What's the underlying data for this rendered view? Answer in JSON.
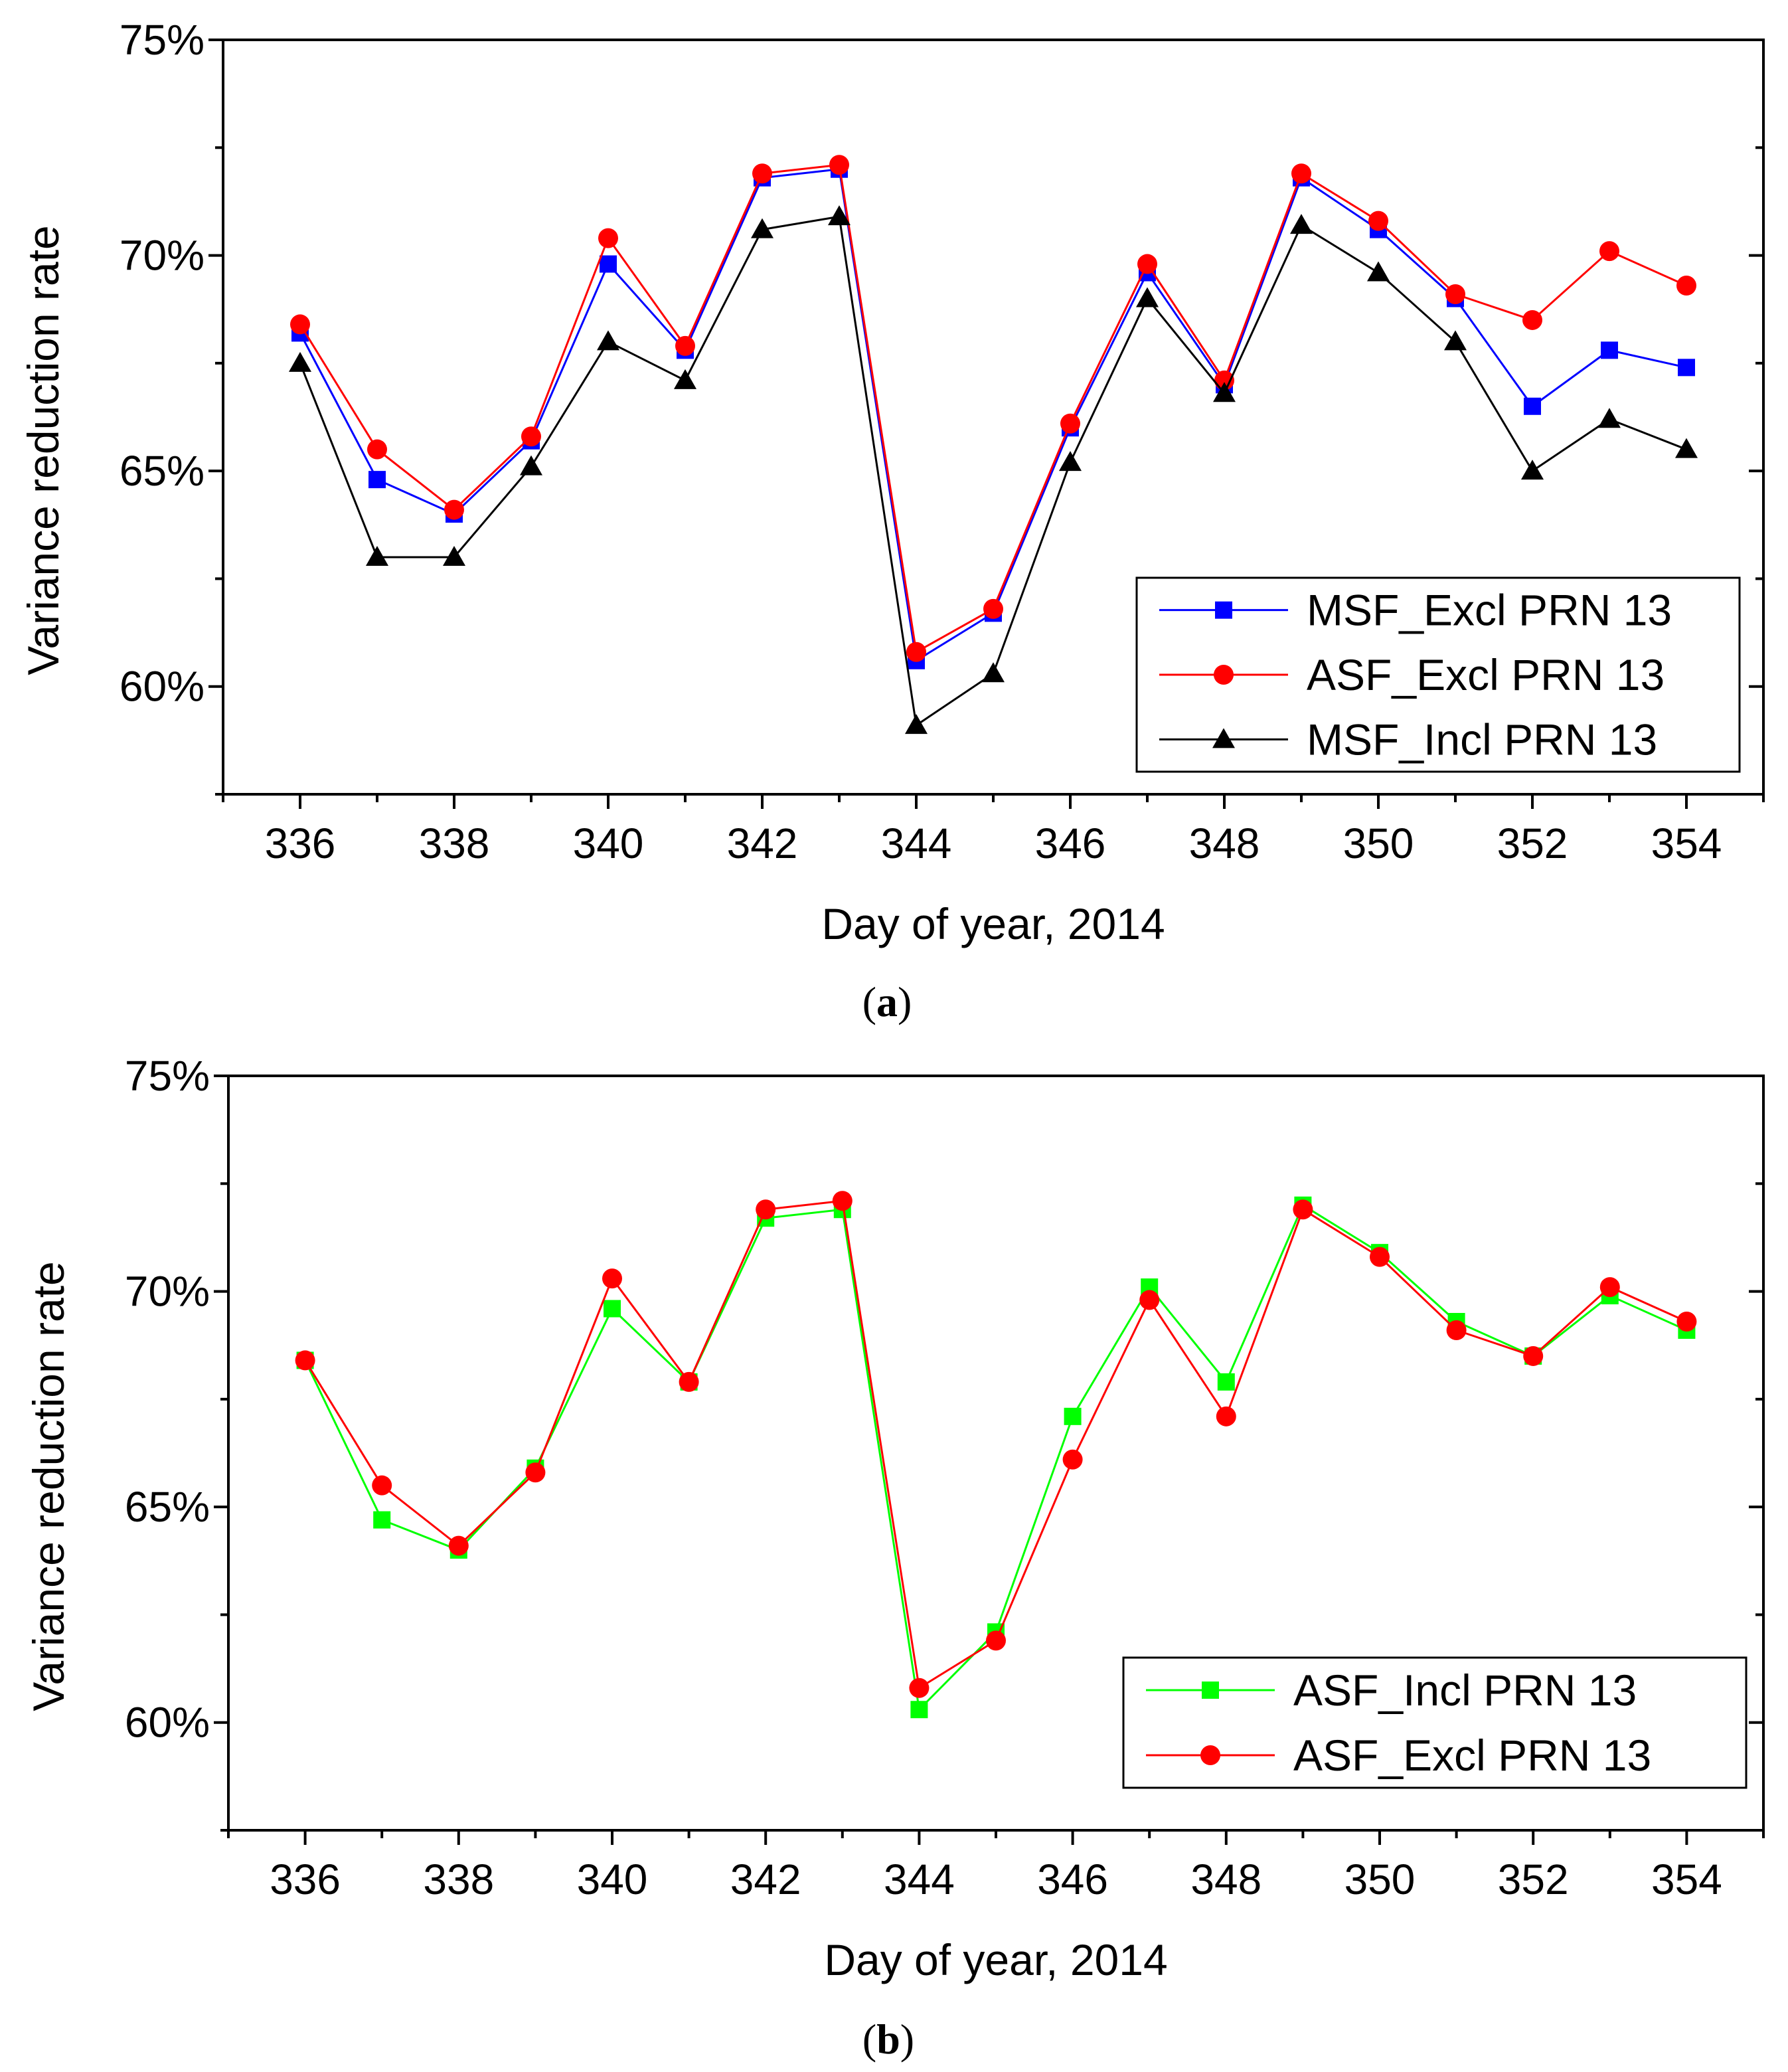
{
  "chart_data": [
    {
      "type": "line",
      "panel_label": "a",
      "xlabel": "Day of  year, 2014",
      "ylabel": "Variance reduction rate",
      "xlim": [
        335,
        355
      ],
      "ylim": [
        57.5,
        75
      ],
      "x_ticks": [
        336,
        338,
        340,
        342,
        344,
        346,
        348,
        350,
        352,
        354
      ],
      "x_tick_labels": [
        "336",
        "338",
        "340",
        "342",
        "344",
        "346",
        "348",
        "350",
        "352",
        "354"
      ],
      "y_ticks": [
        60,
        65,
        70,
        75
      ],
      "y_tick_labels": [
        "60%",
        "65%",
        "70%",
        "75%"
      ],
      "grid": false,
      "legend_position": "bottom-right",
      "x": [
        336,
        337,
        338,
        339,
        340,
        341,
        342,
        343,
        344,
        345,
        346,
        347,
        348,
        349,
        350,
        351,
        352,
        353,
        354
      ],
      "series": [
        {
          "name": "MSF_Excl PRN 13",
          "color": "#0000ff",
          "marker": "square",
          "values": [
            68.2,
            64.8,
            64.0,
            65.7,
            69.8,
            67.8,
            71.8,
            72.0,
            60.6,
            61.7,
            66.0,
            69.6,
            67.0,
            71.8,
            70.6,
            69.0,
            66.5,
            67.8,
            67.4
          ]
        },
        {
          "name": "ASF_Excl PRN 13",
          "color": "#ff0000",
          "marker": "circle",
          "values": [
            68.4,
            65.5,
            64.1,
            65.8,
            70.4,
            67.9,
            71.9,
            72.1,
            60.8,
            61.8,
            66.1,
            69.8,
            67.1,
            71.9,
            70.8,
            69.1,
            68.5,
            70.1,
            69.3
          ]
        },
        {
          "name": "MSF_Incl PRN 13",
          "color": "#000000",
          "marker": "triangle",
          "values": [
            67.5,
            63.0,
            63.0,
            65.1,
            68.0,
            67.1,
            70.6,
            70.9,
            59.1,
            60.3,
            65.2,
            69.0,
            66.8,
            70.7,
            69.6,
            68.0,
            65.0,
            66.2,
            65.5
          ]
        }
      ]
    },
    {
      "type": "line",
      "panel_label": "b",
      "xlabel": "Day of year, 2014",
      "ylabel": "Variance reduction rate",
      "xlim": [
        335,
        355
      ],
      "ylim": [
        57.5,
        75
      ],
      "x_ticks": [
        336,
        338,
        340,
        342,
        344,
        346,
        348,
        350,
        352,
        354
      ],
      "x_tick_labels": [
        "336",
        "338",
        "340",
        "342",
        "344",
        "346",
        "348",
        "350",
        "352",
        "354"
      ],
      "y_ticks": [
        60,
        65,
        70,
        75
      ],
      "y_tick_labels": [
        "60%",
        "65%",
        "70%",
        "75%"
      ],
      "grid": false,
      "legend_position": "bottom-right",
      "x": [
        336,
        337,
        338,
        339,
        340,
        341,
        342,
        343,
        344,
        345,
        346,
        347,
        348,
        349,
        350,
        351,
        352,
        353,
        354
      ],
      "series": [
        {
          "name": "ASF_Incl PRN 13",
          "color": "#00ff00",
          "marker": "square",
          "values": [
            68.4,
            64.7,
            64.0,
            65.9,
            69.6,
            67.9,
            71.7,
            71.9,
            60.3,
            62.1,
            67.1,
            70.1,
            67.9,
            72.0,
            70.9,
            69.3,
            68.5,
            69.9,
            69.1
          ]
        },
        {
          "name": "ASF_Excl PRN 13",
          "color": "#ff0000",
          "marker": "circle",
          "values": [
            68.4,
            65.5,
            64.1,
            65.8,
            70.3,
            67.9,
            71.9,
            72.1,
            60.8,
            61.9,
            66.1,
            69.8,
            67.1,
            71.9,
            70.8,
            69.1,
            68.5,
            70.1,
            69.3
          ]
        }
      ]
    }
  ]
}
